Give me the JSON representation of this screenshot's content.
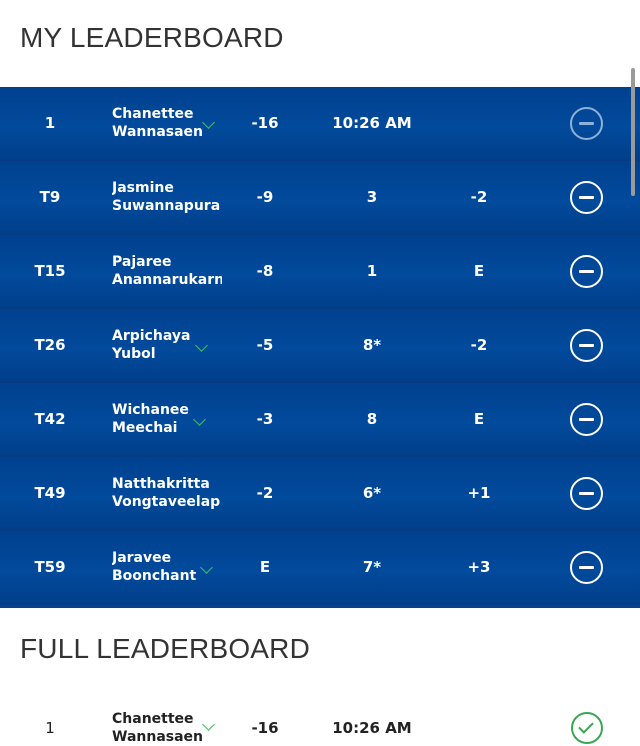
{
  "my_leaderboard": {
    "title": "MY LEADERBOARD",
    "rows": [
      {
        "pos": "1",
        "first": "Chanettee",
        "last": "Wannasaen",
        "score": "-16",
        "thru": "10:26 AM",
        "today": ""
      },
      {
        "pos": "T9",
        "first": "Jasmine",
        "last": "Suwannapura",
        "score": "-9",
        "thru": "3",
        "today": "-2"
      },
      {
        "pos": "T15",
        "first": "Pajaree",
        "last": "Anannarukarn",
        "score": "-8",
        "thru": "1",
        "today": "E"
      },
      {
        "pos": "T26",
        "first": "Arpichaya",
        "last": "Yubol",
        "score": "-5",
        "thru": "8*",
        "today": "-2"
      },
      {
        "pos": "T42",
        "first": "Wichanee",
        "last": "Meechai",
        "score": "-3",
        "thru": "8",
        "today": "E"
      },
      {
        "pos": "T49",
        "first": "Natthakritta",
        "last": "Vongtaveelap",
        "score": "-2",
        "thru": "6*",
        "today": "+1"
      },
      {
        "pos": "T59",
        "first": "Jaravee",
        "last": "Boonchant",
        "score": "E",
        "thru": "7*",
        "today": "+3"
      }
    ]
  },
  "full_leaderboard": {
    "title": "FULL LEADERBOARD",
    "rows": [
      {
        "pos": "1",
        "first": "Chanettee",
        "last": "Wannasaen",
        "score": "-16",
        "thru": "10:26 AM"
      }
    ]
  },
  "colors": {
    "accent_blue": "#00418f",
    "expand_green": "#3fbf62",
    "check_green": "#3aa655"
  },
  "icons": {
    "remove": "minus-circle-icon",
    "added": "check-circle-icon",
    "expand": "chevron-down-icon"
  }
}
